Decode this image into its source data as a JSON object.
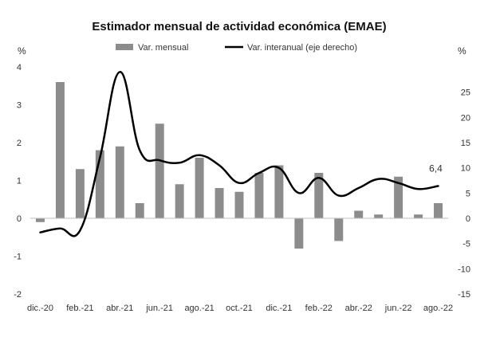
{
  "chart_data": {
    "type": "bar+line",
    "title": "Estimador mensual de actividad económica (EMAE)",
    "left_axis": {
      "unit_label": "%",
      "range": [
        -2,
        4
      ],
      "ticks": [
        4,
        3,
        2,
        1,
        0,
        -1,
        -2
      ]
    },
    "right_axis": {
      "unit_label": "%",
      "range": [
        -15,
        30
      ],
      "ticks": [
        25,
        20,
        15,
        10,
        5,
        0,
        -5,
        -10,
        -15
      ]
    },
    "categories": [
      "dic.-20",
      "ene.-21",
      "feb.-21",
      "mar.-21",
      "abr.-21",
      "may.-21",
      "jun.-21",
      "jul.-21",
      "ago.-21",
      "sep.-21",
      "oct.-21",
      "nov.-21",
      "dic.-21",
      "ene.-22",
      "feb.-22",
      "mar.-22",
      "abr.-22",
      "may.-22",
      "jun.-22",
      "jul.-22",
      "ago.-22"
    ],
    "x_tick_labels": [
      "dic.-20",
      "feb.-21",
      "abr.-21",
      "jun.-21",
      "ago.-21",
      "oct.-21",
      "dic.-21",
      "feb.-22",
      "abr.-22",
      "jun.-22",
      "ago.-22"
    ],
    "series": [
      {
        "name": "Var. mensual",
        "kind": "bar",
        "axis": "left",
        "color": "#8c8c8c",
        "values": [
          -0.1,
          3.6,
          1.3,
          1.8,
          1.9,
          0.4,
          2.5,
          0.9,
          1.6,
          0.8,
          0.7,
          1.2,
          1.4,
          -0.8,
          1.2,
          -0.6,
          0.2,
          0.1,
          1.1,
          0.1,
          0.4
        ]
      },
      {
        "name": "Var. interanual (eje derecho)",
        "kind": "line",
        "axis": "right",
        "color": "#000000",
        "values": [
          -2.8,
          -2.0,
          -2.4,
          12.0,
          29.0,
          13.5,
          11.5,
          11.0,
          12.5,
          10.5,
          7.0,
          9.0,
          10.0,
          5.0,
          8.0,
          4.5,
          6.0,
          7.8,
          7.0,
          5.8,
          6.4
        ]
      }
    ],
    "annotation": {
      "category": "ago.-22",
      "text": "6,4"
    },
    "legend_position": "top"
  }
}
